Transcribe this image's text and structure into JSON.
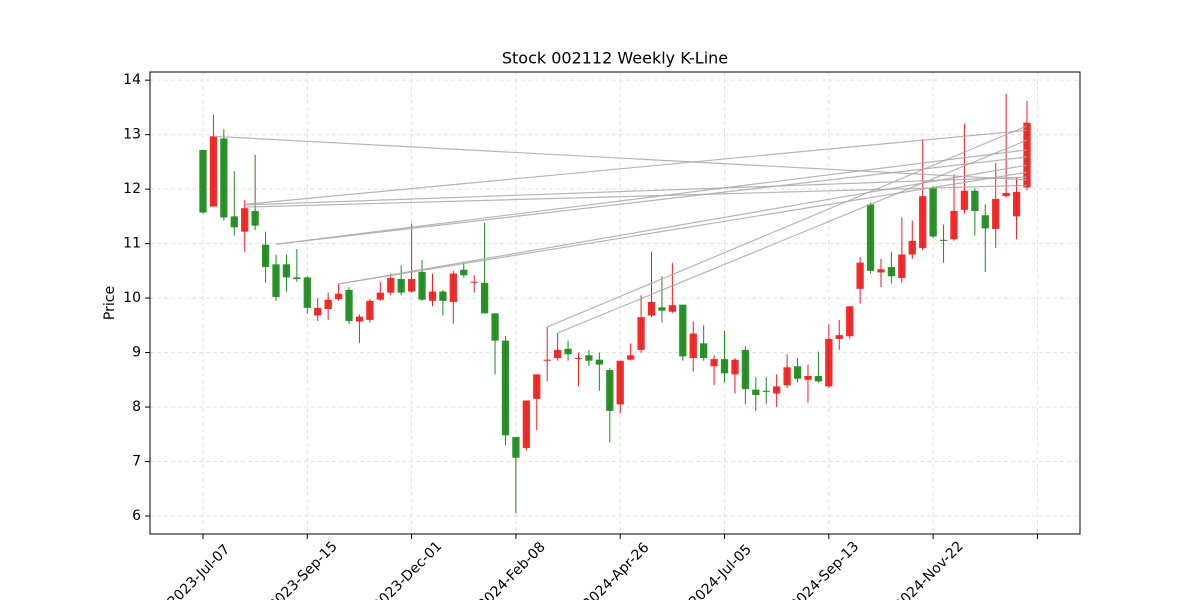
{
  "chart_data": {
    "type": "candlestick",
    "title": "Stock 002112 Weekly K-Line",
    "ylabel": "Price",
    "categories": [
      "2023-Jul-07",
      null,
      null,
      null,
      null,
      null,
      null,
      null,
      null,
      null,
      "2023-Sep-15",
      null,
      null,
      null,
      null,
      null,
      null,
      null,
      null,
      null,
      "2023-Dec-01",
      null,
      null,
      null,
      null,
      null,
      null,
      null,
      null,
      null,
      "2024-Feb-08",
      null,
      null,
      null,
      null,
      null,
      null,
      null,
      null,
      null,
      "2024-Apr-26",
      null,
      null,
      null,
      null,
      null,
      null,
      null,
      null,
      null,
      "2024-Jul-05",
      null,
      null,
      null,
      null,
      null,
      null,
      null,
      null,
      null,
      "2024-Sep-13",
      null,
      null,
      null,
      null,
      null,
      null,
      null,
      null,
      null,
      "2024-Nov-22",
      null,
      null,
      null,
      null,
      null,
      null,
      null,
      null,
      null
    ],
    "open": [
      12.72,
      11.68,
      12.93,
      11.5,
      11.22,
      11.6,
      10.98,
      10.62,
      10.62,
      10.38,
      10.38,
      9.68,
      9.8,
      9.98,
      10.15,
      9.57,
      9.6,
      9.97,
      10.1,
      10.35,
      10.12,
      10.48,
      9.95,
      10.12,
      9.93,
      10.52,
      10.28,
      10.28,
      9.72,
      9.22,
      7.45,
      7.25,
      8.15,
      8.85,
      8.9,
      9.07,
      8.88,
      8.95,
      8.87,
      8.68,
      8.05,
      8.87,
      9.05,
      9.68,
      9.83,
      9.75,
      9.88,
      8.9,
      9.17,
      8.75,
      8.88,
      8.6,
      9.05,
      8.32,
      8.3,
      8.25,
      8.4,
      8.75,
      8.5,
      8.57,
      8.38,
      9.25,
      9.3,
      10.17,
      11.72,
      10.47,
      10.57,
      10.37,
      10.8,
      10.92,
      12.02,
      11.07,
      11.08,
      11.62,
      11.97,
      11.52,
      11.27,
      11.87,
      11.5,
      12.03
    ],
    "high": [
      12.72,
      13.37,
      13.1,
      12.33,
      11.8,
      12.63,
      11.22,
      10.8,
      10.8,
      10.9,
      10.4,
      10.0,
      10.1,
      10.26,
      10.2,
      9.7,
      9.98,
      10.3,
      10.45,
      10.6,
      11.37,
      10.7,
      10.45,
      10.15,
      10.5,
      10.67,
      10.42,
      11.38,
      9.72,
      9.3,
      7.45,
      8.12,
      8.6,
      9.47,
      9.36,
      9.22,
      9.0,
      9.05,
      9.0,
      8.72,
      8.85,
      9.17,
      10.05,
      10.85,
      10.4,
      10.65,
      9.88,
      9.57,
      9.5,
      8.95,
      9.4,
      8.9,
      9.12,
      8.55,
      8.55,
      8.6,
      8.97,
      8.9,
      8.78,
      9.02,
      9.52,
      9.6,
      9.85,
      10.75,
      11.75,
      10.72,
      10.85,
      11.48,
      11.42,
      12.92,
      12.05,
      11.35,
      12.27,
      13.2,
      12.02,
      11.72,
      12.48,
      13.75,
      12.22,
      13.62
    ],
    "low": [
      11.55,
      11.68,
      11.42,
      11.15,
      10.85,
      11.25,
      10.28,
      9.95,
      10.12,
      10.3,
      9.72,
      9.58,
      9.6,
      9.95,
      9.52,
      9.18,
      9.55,
      9.95,
      10.05,
      10.05,
      10.1,
      9.95,
      9.85,
      9.68,
      9.53,
      10.38,
      10.1,
      9.72,
      8.6,
      7.3,
      6.05,
      7.2,
      7.58,
      8.47,
      8.85,
      8.85,
      8.38,
      8.75,
      8.3,
      7.35,
      7.88,
      8.85,
      9.0,
      9.65,
      9.55,
      9.72,
      8.85,
      8.65,
      8.85,
      8.4,
      8.45,
      8.25,
      8.05,
      7.93,
      8.05,
      8.0,
      8.35,
      8.45,
      8.08,
      8.45,
      8.35,
      9.05,
      9.25,
      9.9,
      10.45,
      10.2,
      10.27,
      10.28,
      10.72,
      10.88,
      11.1,
      10.65,
      11.05,
      11.55,
      11.15,
      10.48,
      10.92,
      11.85,
      11.08,
      11.98
    ],
    "close": [
      11.57,
      12.97,
      11.48,
      11.3,
      11.65,
      11.33,
      10.57,
      10.02,
      10.38,
      10.35,
      9.82,
      9.82,
      9.97,
      10.08,
      9.58,
      9.66,
      9.95,
      10.1,
      10.37,
      10.1,
      10.35,
      9.97,
      10.12,
      9.95,
      10.45,
      10.42,
      10.3,
      9.72,
      9.22,
      7.48,
      7.07,
      8.12,
      8.6,
      8.87,
      9.05,
      8.97,
      8.9,
      8.85,
      8.78,
      7.93,
      8.85,
      8.95,
      9.65,
      9.93,
      9.77,
      9.87,
      8.93,
      9.35,
      8.9,
      8.88,
      8.62,
      8.87,
      8.33,
      8.22,
      8.28,
      8.38,
      8.73,
      8.52,
      8.57,
      8.47,
      9.25,
      9.32,
      9.85,
      10.65,
      10.5,
      10.53,
      10.4,
      10.8,
      11.05,
      11.87,
      11.13,
      11.05,
      11.6,
      11.97,
      11.6,
      11.28,
      11.82,
      11.93,
      11.95,
      13.22
    ],
    "up_color": "#ee1c1c",
    "down_color": "#1a8a1a",
    "line_color": "#a8a8a8",
    "trend_lines": [
      {
        "x": [
          1,
          79
        ],
        "y": [
          12.97,
          12.17
        ]
      },
      {
        "x": [
          4,
          79
        ],
        "y": [
          11.72,
          13.08
        ]
      },
      {
        "x": [
          4,
          79
        ],
        "y": [
          11.67,
          12.07
        ]
      },
      {
        "x": [
          4,
          79
        ],
        "y": [
          11.71,
          12.22
        ]
      },
      {
        "x": [
          7,
          79
        ],
        "y": [
          10.99,
          12.59
        ]
      },
      {
        "x": [
          7,
          79
        ],
        "y": [
          10.99,
          12.72
        ]
      },
      {
        "x": [
          13,
          79
        ],
        "y": [
          10.26,
          12.44
        ]
      },
      {
        "x": [
          13,
          79
        ],
        "y": [
          10.26,
          12.31
        ]
      },
      {
        "x": [
          33,
          79
        ],
        "y": [
          9.47,
          13.16
        ]
      },
      {
        "x": [
          34,
          79
        ],
        "y": [
          9.36,
          12.9
        ]
      }
    ],
    "xlim": [
      -5.08,
      84.08
    ],
    "xticks": [
      0,
      10,
      20,
      30,
      40,
      50,
      60,
      70,
      80
    ],
    "ylim": [
      5.67,
      14.15
    ],
    "yticks": [
      6,
      7,
      8,
      9,
      10,
      11,
      12,
      13,
      14
    ],
    "grid": true
  }
}
